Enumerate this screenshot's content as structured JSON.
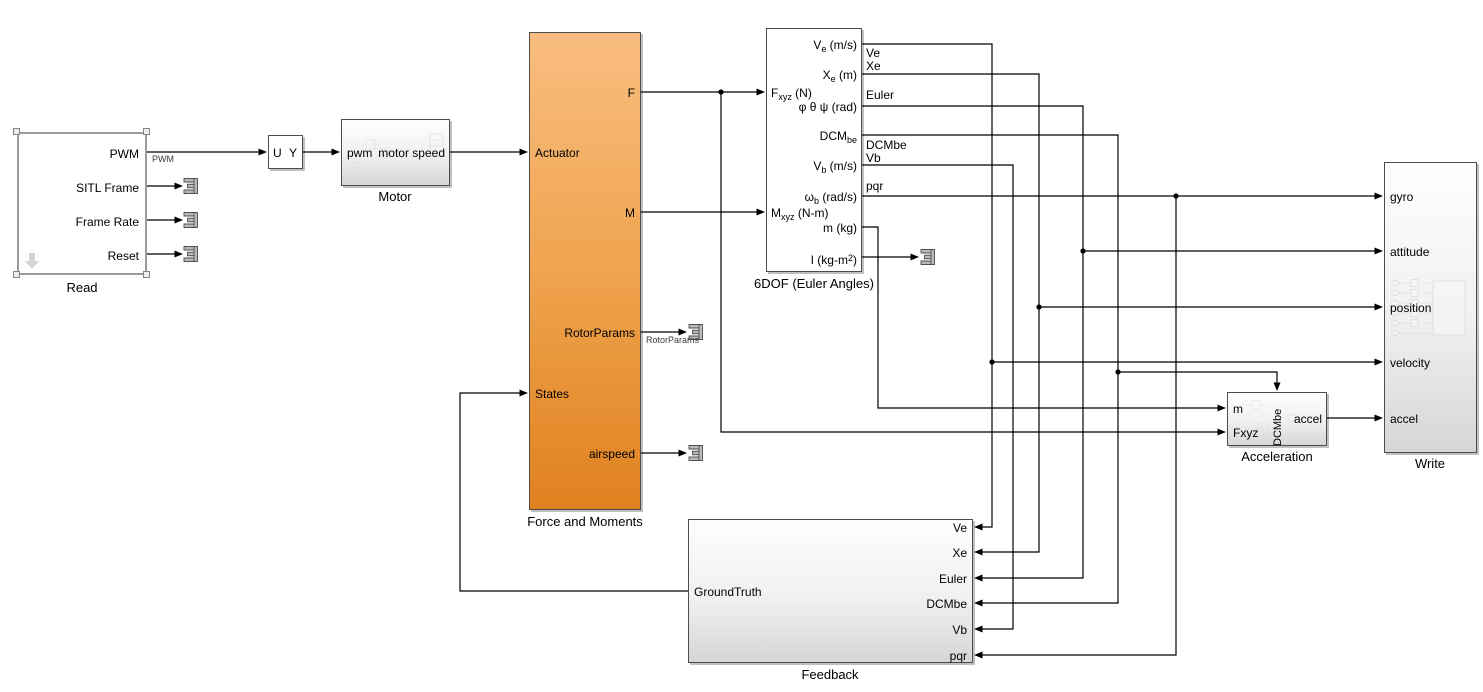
{
  "app": {
    "name": "Simulink model diagram"
  },
  "colors": {
    "background": "#ffffff",
    "wire": "#000000",
    "block_border": "#4d4d4d",
    "selected_border": "#9a9a9a",
    "orange_top": "#f9bd81",
    "orange_bottom": "#e0811f",
    "terminator_fill": "#b9b9b9"
  },
  "blocks": {
    "read": {
      "label": "Read",
      "outputs": [
        "PWM",
        "SITL Frame",
        "Frame Rate",
        "Reset"
      ]
    },
    "selector": {
      "input": "U",
      "output": "Y"
    },
    "motor": {
      "label": "Motor",
      "input": "pwm",
      "output": "motor speed"
    },
    "force_moments": {
      "label": "Force and Moments",
      "inputs": [
        "Actuator",
        "States"
      ],
      "outputs": [
        "F",
        "M",
        "RotorParams",
        "airspeed"
      ]
    },
    "six_dof": {
      "label": "6DOF (Euler Angles)",
      "inputs": [
        [
          {
            "t": "F"
          },
          {
            "t": "xyz",
            "s": "sub"
          },
          {
            "t": " (N)"
          }
        ],
        [
          {
            "t": "M"
          },
          {
            "t": "xyz",
            "s": "sub"
          },
          {
            "t": " (N-m)"
          }
        ]
      ],
      "outputs": [
        [
          {
            "t": "V"
          },
          {
            "t": "e",
            "s": "sub"
          },
          {
            "t": " (m/s)"
          }
        ],
        [
          {
            "t": "X"
          },
          {
            "t": "e",
            "s": "sub"
          },
          {
            "t": " (m)"
          }
        ],
        [
          {
            "t": "φ θ ψ (rad)"
          }
        ],
        [
          {
            "t": "DCM"
          },
          {
            "t": "be",
            "s": "sub"
          }
        ],
        [
          {
            "t": "V"
          },
          {
            "t": "b",
            "s": "sub"
          },
          {
            "t": " (m/s)"
          }
        ],
        [
          {
            "t": "ω"
          },
          {
            "t": "b",
            "s": "sub"
          },
          {
            "t": " (rad/s)"
          }
        ],
        [
          {
            "t": "m (kg)"
          }
        ],
        [
          {
            "t": "I (kg-m"
          },
          {
            "t": "2",
            "s": "sup"
          },
          {
            "t": ")"
          }
        ]
      ]
    },
    "feedback": {
      "label": "Feedback",
      "output": "GroundTruth",
      "inputs": [
        "Ve",
        "Xe",
        "Euler",
        "DCMbe",
        "Vb",
        "pqr"
      ]
    },
    "acceleration": {
      "label": "Acceleration",
      "inputs": [
        "m",
        "Fxyz"
      ],
      "top_input": "DCMbe",
      "output": "accel"
    },
    "write": {
      "label": "Write",
      "inputs": [
        "gyro",
        "attitude",
        "position",
        "velocity",
        "accel"
      ]
    }
  },
  "signal_labels": {
    "pwm": "PWM",
    "rotor_params": "RotorParams",
    "ve": "Ve",
    "xe": "Xe",
    "euler": "Euler",
    "dcmbe": "DCMbe",
    "vb": "Vb",
    "pqr": "pqr"
  }
}
